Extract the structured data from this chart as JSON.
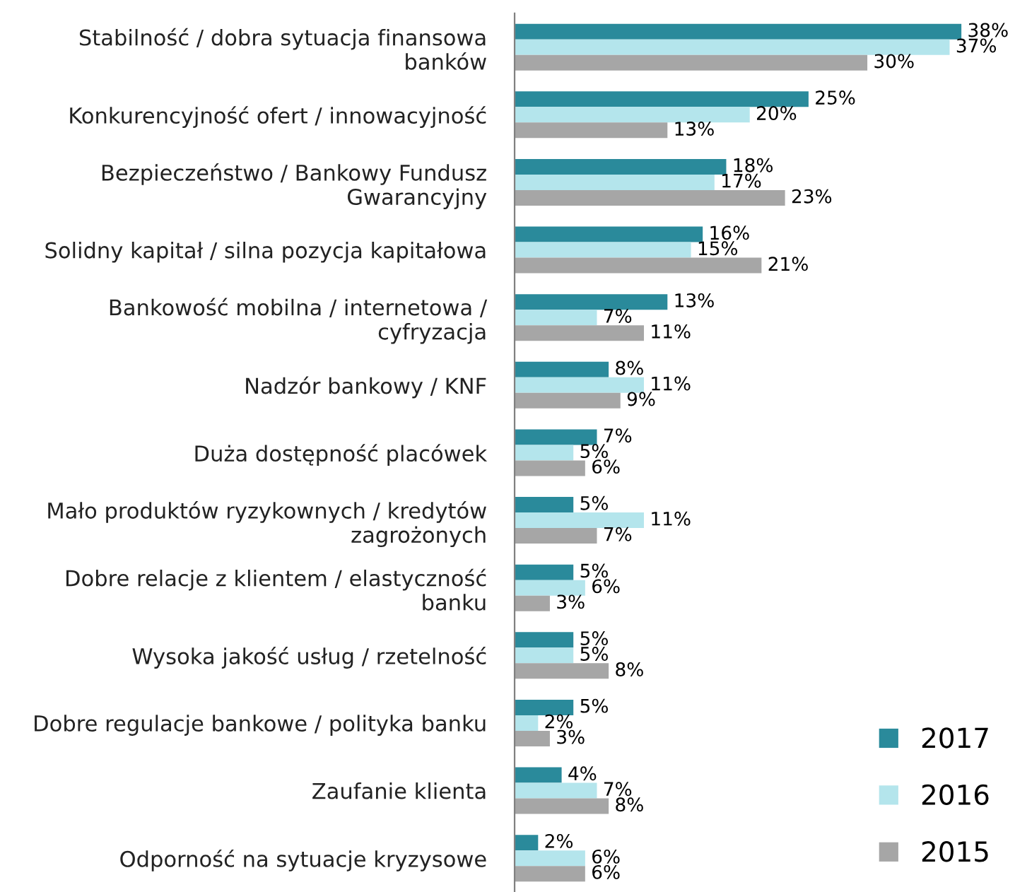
{
  "chart_data": {
    "type": "bar",
    "orientation": "horizontal",
    "categories": [
      "Stabilność / dobra sytuacja finansowa\nbanków",
      "Konkurencyjność ofert / innowacyjność",
      "Bezpieczeństwo / Bankowy Fundusz\nGwarancyjny",
      "Solidny kapitał / silna pozycja kapitałowa",
      "Bankowość mobilna / internetowa /\ncyfryzacja",
      "Nadzór bankowy / KNF",
      "Duża dostępność placówek",
      "Mało produktów ryzykownych / kredytów\nzagrożonych",
      "Dobre relacje z klientem / elastyczność\nbanku",
      "Wysoka jakość usług / rzetelność",
      "Dobre regulacje bankowe / polityka banku",
      "Zaufanie klienta",
      "Odporność na sytuacje kryzysowe"
    ],
    "series": [
      {
        "name": "2017",
        "color": "#2a8a9b",
        "values": [
          38,
          25,
          18,
          16,
          13,
          8,
          7,
          5,
          5,
          5,
          5,
          4,
          2
        ],
        "value_labels": [
          "38%",
          "25%",
          "18%",
          "16%",
          "13%",
          "8%",
          "7%",
          "5%",
          "5%",
          "5%",
          "5%",
          "4%",
          "2%"
        ]
      },
      {
        "name": "2016",
        "color": "#b4e5ec",
        "values": [
          37,
          20,
          17,
          15,
          7,
          11,
          5,
          11,
          6,
          5,
          2,
          7,
          6
        ],
        "value_labels": [
          "37%",
          "20%",
          "17%",
          "15%",
          "7%",
          "11%",
          "5%",
          "11%",
          "6%",
          "5%",
          "2%",
          "7%",
          "6%"
        ]
      },
      {
        "name": "2015",
        "color": "#a6a6a6",
        "values": [
          30,
          13,
          23,
          21,
          11,
          9,
          6,
          7,
          3,
          8,
          3,
          8,
          6
        ],
        "value_labels": [
          "30%",
          "13%",
          "23%",
          "21%",
          "11%",
          "9%",
          "6%",
          "7%",
          "3%",
          "8%",
          "3%",
          "8%",
          "6%"
        ]
      }
    ],
    "legend": "bottom right",
    "grid": false,
    "tick_labels": "y"
  }
}
